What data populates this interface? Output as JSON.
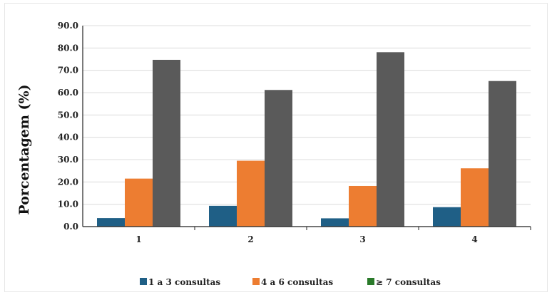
{
  "chart_data": {
    "type": "bar",
    "categories": [
      "1",
      "2",
      "3",
      "4"
    ],
    "series": [
      {
        "name": "1 a 3 consultas",
        "color": "#1f5f86",
        "values": [
          3.8,
          9.3,
          3.7,
          8.7
        ]
      },
      {
        "name": "4 a 6 consultas",
        "color": "#ed7d31",
        "values": [
          21.5,
          29.5,
          18.2,
          26.1
        ]
      },
      {
        "name": "≥ 7 consultas",
        "color": "#5a5a5a",
        "legend_color": "#2a7a2a",
        "values": [
          74.7,
          61.2,
          78.1,
          65.2
        ]
      }
    ],
    "ylabel": "Porcentagem (%)",
    "ylim": [
      0,
      90
    ],
    "yticks": [
      "0.0",
      "10.0",
      "20.0",
      "30.0",
      "40.0",
      "50.0",
      "60.0",
      "70.0",
      "80.0",
      "90.0"
    ],
    "grid": true,
    "legend_position": "bottom"
  }
}
